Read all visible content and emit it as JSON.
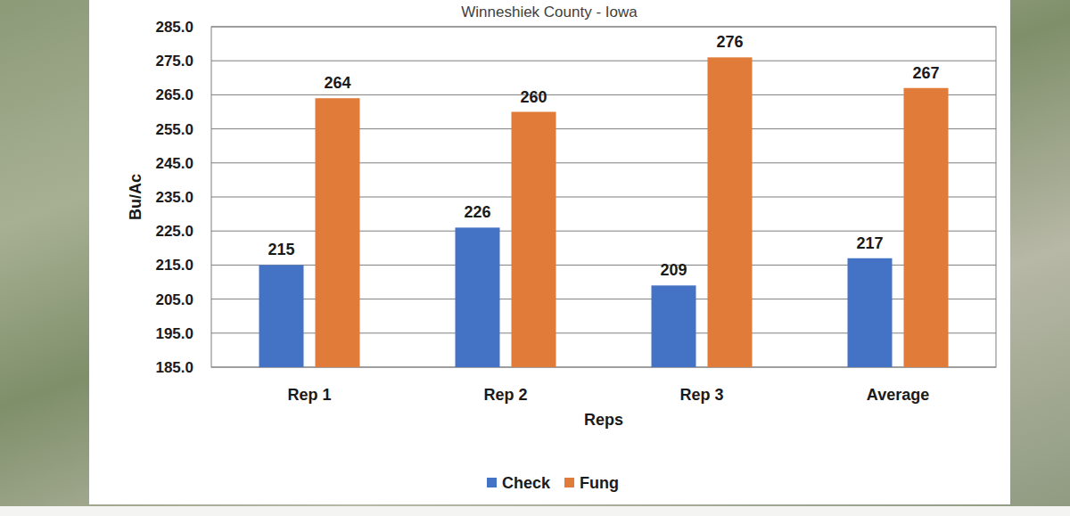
{
  "chart_data": {
    "type": "bar",
    "title": "Winneshiek County - Iowa",
    "x_label": "Reps",
    "y_label": "Bu/Ac",
    "categories": [
      "Rep 1",
      "Rep 2",
      "Rep 3",
      "Average"
    ],
    "series": [
      {
        "name": "Check",
        "color": "#4472c4",
        "values": [
          215,
          226,
          209,
          217
        ]
      },
      {
        "name": "Fung",
        "color": "#e07b39",
        "values": [
          264,
          260,
          276,
          267
        ]
      }
    ],
    "ylim": [
      185,
      285
    ],
    "yticks": [
      {
        "value": 185,
        "label": "185.0"
      },
      {
        "value": 195,
        "label": "195.0"
      },
      {
        "value": 205,
        "label": "205.0"
      },
      {
        "value": 215,
        "label": "215.0"
      },
      {
        "value": 225,
        "label": "225.0"
      },
      {
        "value": 235,
        "label": "235.0"
      },
      {
        "value": 245,
        "label": "245.0"
      },
      {
        "value": 255,
        "label": "255.0"
      },
      {
        "value": 265,
        "label": "265.0"
      },
      {
        "value": 275,
        "label": "275.0"
      },
      {
        "value": 285,
        "label": "285.0"
      }
    ],
    "grid": true,
    "legend": "bottom",
    "data_labels": true
  }
}
